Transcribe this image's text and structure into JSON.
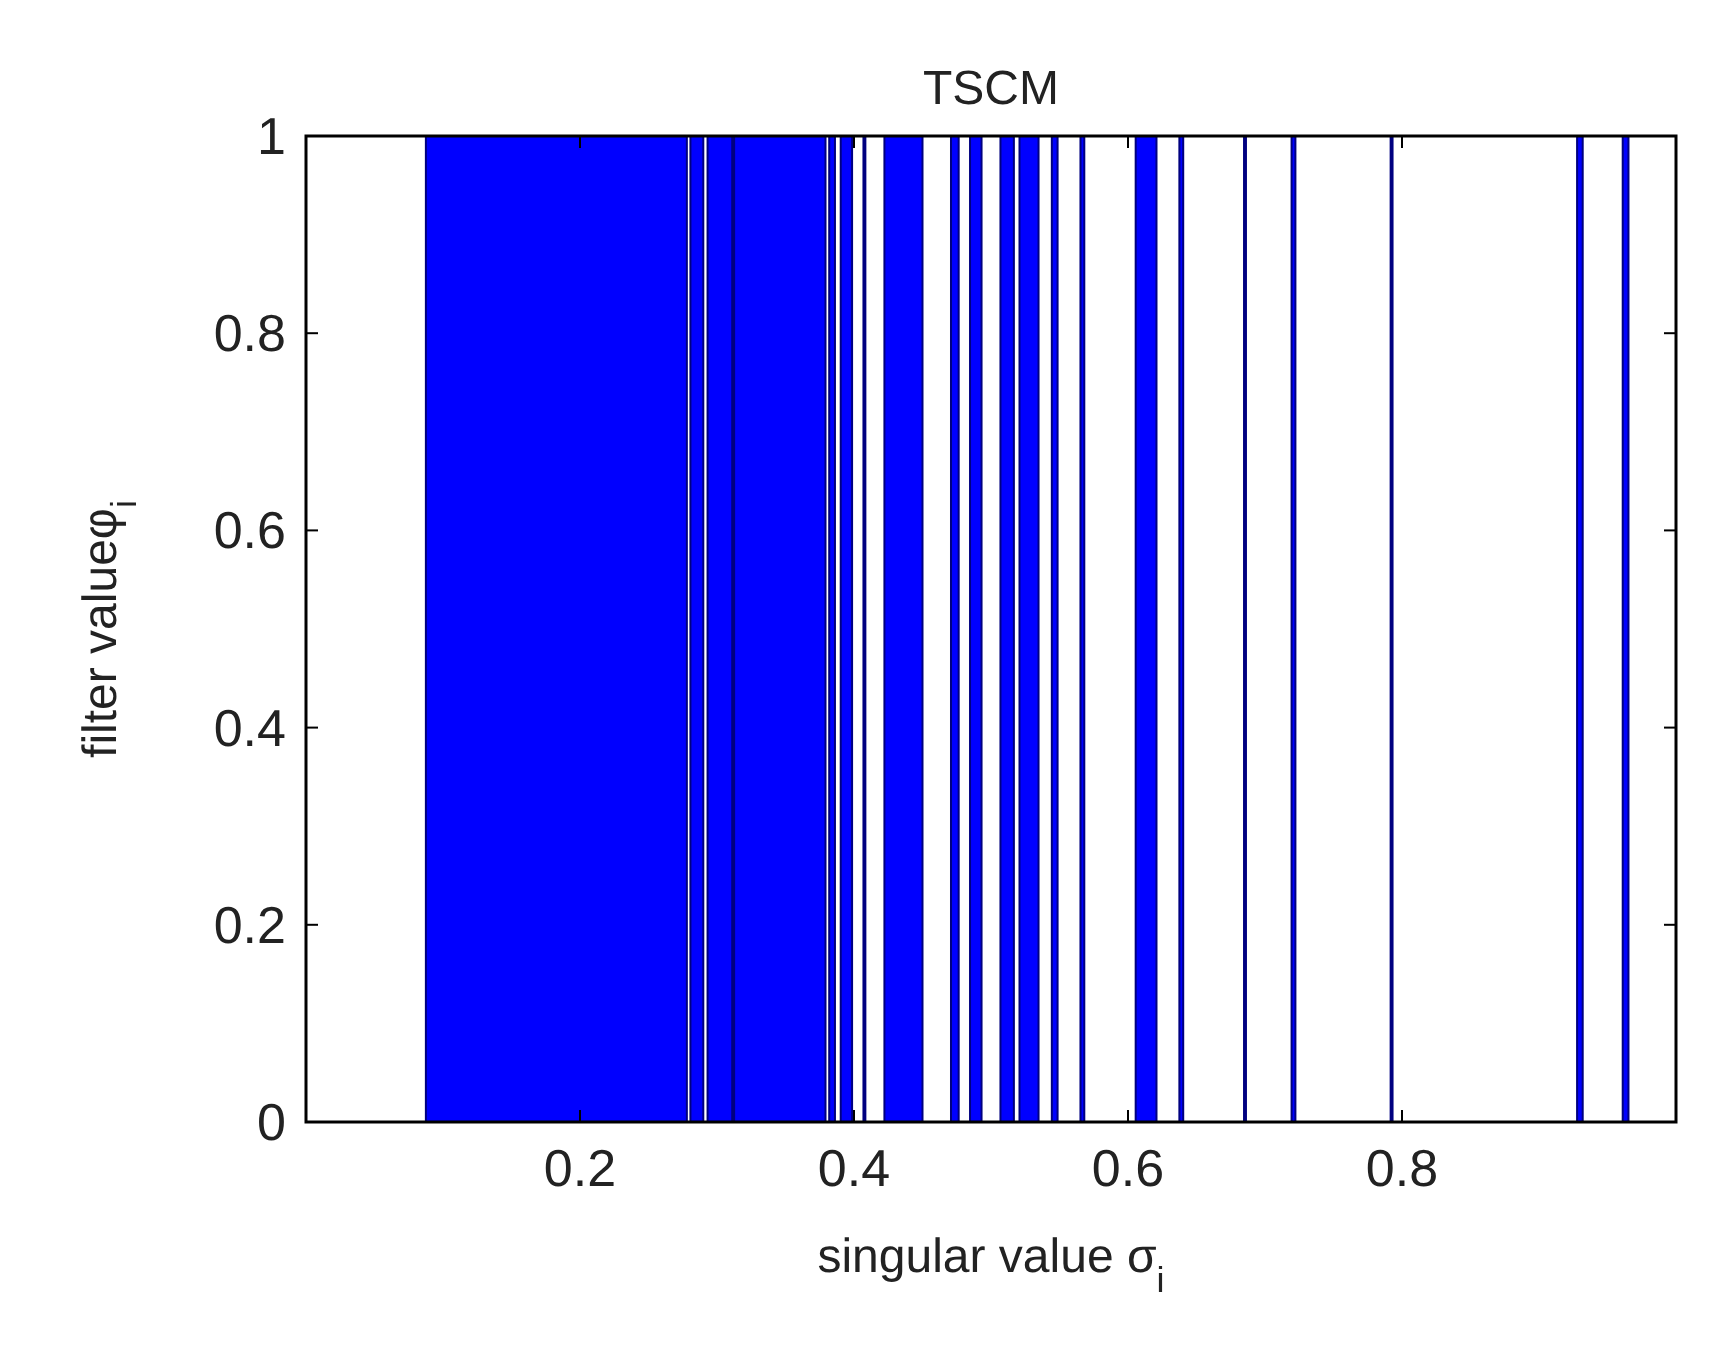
{
  "chart_data": {
    "type": "area",
    "title": "TSCM",
    "xlabel": "singular value σ$_{i}$",
    "ylabel": "filter valueφ$_{i}$",
    "xlim": [
      0,
      1
    ],
    "xticks": [
      0.2,
      0.4,
      0.6,
      0.8
    ],
    "ylim": [
      0,
      1
    ],
    "yticks": [
      0,
      0.2,
      0.4,
      0.6,
      0.8,
      1
    ],
    "grid": false,
    "line_style": "solid",
    "series": [
      {
        "color": "#0000ff",
        "x": [
          0.0875,
          0.278,
          0.2806,
          0.29,
          0.2931,
          0.3111,
          0.3125,
          0.3792,
          0.3819,
          0.3861,
          0.3903,
          0.3986,
          0.4069,
          0.4083,
          0.4222,
          0.45,
          0.4708,
          0.4764,
          0.4847,
          0.4931,
          0.5069,
          0.5167,
          0.5208,
          0.5347,
          0.5444,
          0.5486,
          0.5653,
          0.5681,
          0.6056,
          0.6208,
          0.6375,
          0.6403,
          0.6847,
          0.6861,
          0.7194,
          0.7222,
          0.7917,
          0.7931,
          0.9278,
          0.9319,
          0.9611,
          0.9653
        ],
        "values": [
          1,
          0,
          1,
          0,
          1,
          0,
          1,
          0,
          1,
          0,
          1,
          0,
          1,
          0,
          1,
          0,
          1,
          0,
          1,
          0,
          1,
          0,
          1,
          0,
          1,
          0,
          1,
          0,
          1,
          0,
          1,
          0,
          1,
          0,
          1,
          0,
          1,
          0,
          1,
          0,
          1,
          0
        ]
      }
    ]
  }
}
